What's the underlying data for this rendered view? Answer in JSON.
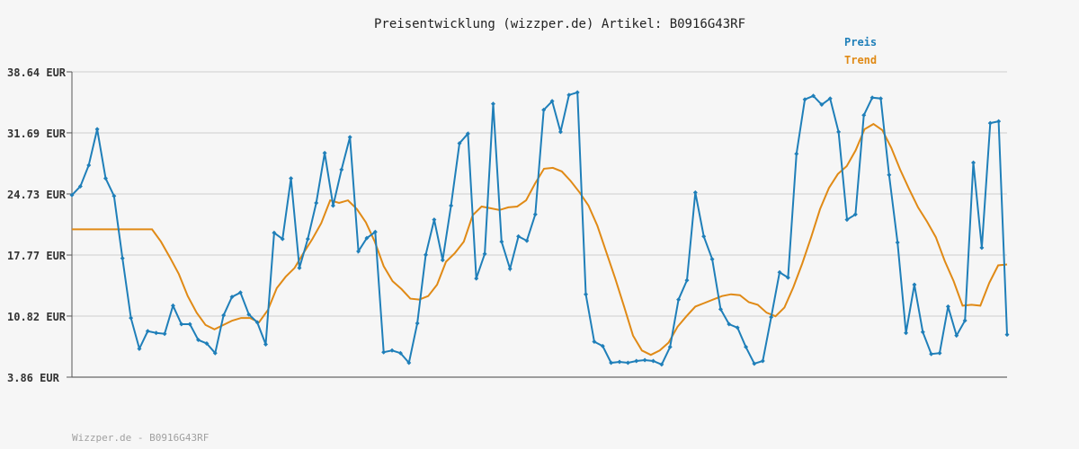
{
  "chart_data": {
    "type": "line",
    "title": "Preisentwicklung (wizzper.de) Artikel: B0916G43RF",
    "xlabel": "",
    "ylabel": "",
    "ylim": [
      3.86,
      38.64
    ],
    "yticks": [
      "38.64 EUR",
      "31.69 EUR",
      "24.73 EUR",
      "17.77 EUR",
      "10.82 EUR",
      "3.86 EUR"
    ],
    "ytick_values": [
      38.64,
      31.69,
      24.73,
      17.77,
      10.82,
      3.86
    ],
    "grid": true,
    "legend_position": "top-right",
    "colors": {
      "preis": "#1f7fb9",
      "trend": "#e08a16",
      "grid": "#e2e2e2",
      "axis": "#555555"
    },
    "series": [
      {
        "name": "Preis",
        "values": [
          24.6,
          25.6,
          28.0,
          32.1,
          26.5,
          24.5,
          17.4,
          10.6,
          7.1,
          9.1,
          8.9,
          8.8,
          12.0,
          9.9,
          9.9,
          8.1,
          7.7,
          6.6,
          10.9,
          13.0,
          13.5,
          11.0,
          10.1,
          7.6,
          20.3,
          19.6,
          26.5,
          16.3,
          19.6,
          23.7,
          29.4,
          23.4,
          27.5,
          31.2,
          18.2,
          19.7,
          20.4,
          6.7,
          6.9,
          6.6,
          5.5,
          10.0,
          17.8,
          21.8,
          17.2,
          23.4,
          30.5,
          31.6,
          15.1,
          17.9,
          35.0,
          19.3,
          16.2,
          19.9,
          19.4,
          22.4,
          34.3,
          35.3,
          31.8,
          36.0,
          36.3,
          13.3,
          7.9,
          7.4,
          5.5,
          5.6,
          5.5,
          5.7,
          5.8,
          5.7,
          5.3,
          7.3,
          12.7,
          14.9,
          24.9,
          19.9,
          17.3,
          11.6,
          9.9,
          9.5,
          7.3,
          5.4,
          5.7,
          10.7,
          15.8,
          15.2,
          29.3,
          35.5,
          35.9,
          34.9,
          35.6,
          31.8,
          21.8,
          22.4,
          33.7,
          35.7,
          35.6,
          26.9,
          19.2,
          8.9,
          14.4,
          9.0,
          6.5,
          6.6,
          11.9,
          8.6,
          10.3,
          28.3,
          18.6,
          32.8,
          33.0,
          8.7
        ]
      },
      {
        "name": "Trend",
        "values": [
          20.7,
          20.7,
          20.7,
          20.7,
          20.7,
          20.7,
          20.7,
          20.7,
          20.7,
          20.7,
          19.3,
          17.5,
          15.6,
          13.1,
          11.2,
          9.8,
          9.3,
          9.8,
          10.3,
          10.6,
          10.6,
          10.1,
          11.5,
          14.0,
          15.3,
          16.3,
          18.0,
          19.6,
          21.4,
          24.0,
          23.7,
          24.0,
          23.0,
          21.5,
          19.3,
          16.5,
          14.8,
          13.9,
          12.8,
          12.7,
          13.1,
          14.4,
          17.0,
          18.0,
          19.3,
          22.3,
          23.3,
          23.1,
          22.9,
          23.2,
          23.3,
          24.0,
          25.9,
          27.6,
          27.7,
          27.3,
          26.2,
          24.9,
          23.4,
          21.1,
          18.1,
          15.1,
          11.9,
          8.6,
          6.9,
          6.4,
          6.9,
          7.8,
          9.6,
          10.8,
          11.9,
          12.3,
          12.7,
          13.1,
          13.3,
          13.2,
          12.4,
          12.1,
          11.2,
          10.8,
          11.8,
          14.1,
          16.8,
          19.8,
          23.0,
          25.4,
          27.0,
          27.9,
          29.7,
          32.1,
          32.7,
          32.0,
          30.0,
          27.5,
          25.3,
          23.2,
          21.6,
          19.8,
          17.1,
          14.8,
          12.0,
          12.1,
          12.0,
          14.6,
          16.6,
          16.7
        ]
      }
    ]
  },
  "legend": {
    "preis": "Preis",
    "trend": "Trend"
  },
  "footer": "Wizzper.de - B0916G43RF"
}
